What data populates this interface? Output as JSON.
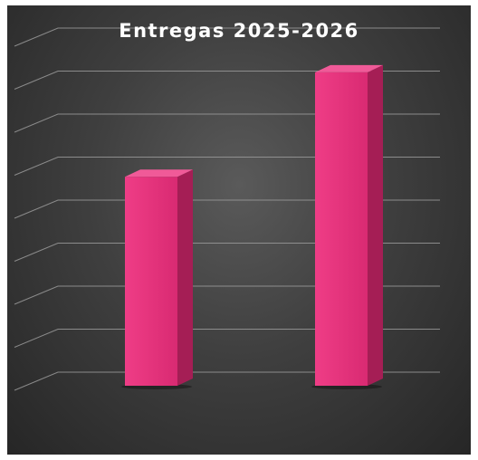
{
  "chart_data": {
    "type": "bar",
    "title": "Entregas 2025-2026",
    "categories": [
      "",
      ""
    ],
    "values": [
      5,
      7.5
    ],
    "ylim": [
      0,
      8
    ],
    "grid": true,
    "legend": "none",
    "colors": {
      "bar_front": "#e8307a",
      "bar_side": "#a51e55",
      "bar_top": "#f05a98",
      "background": "#3a3a3a",
      "grid": "#9a9a9a",
      "title": "#ffffff"
    }
  }
}
